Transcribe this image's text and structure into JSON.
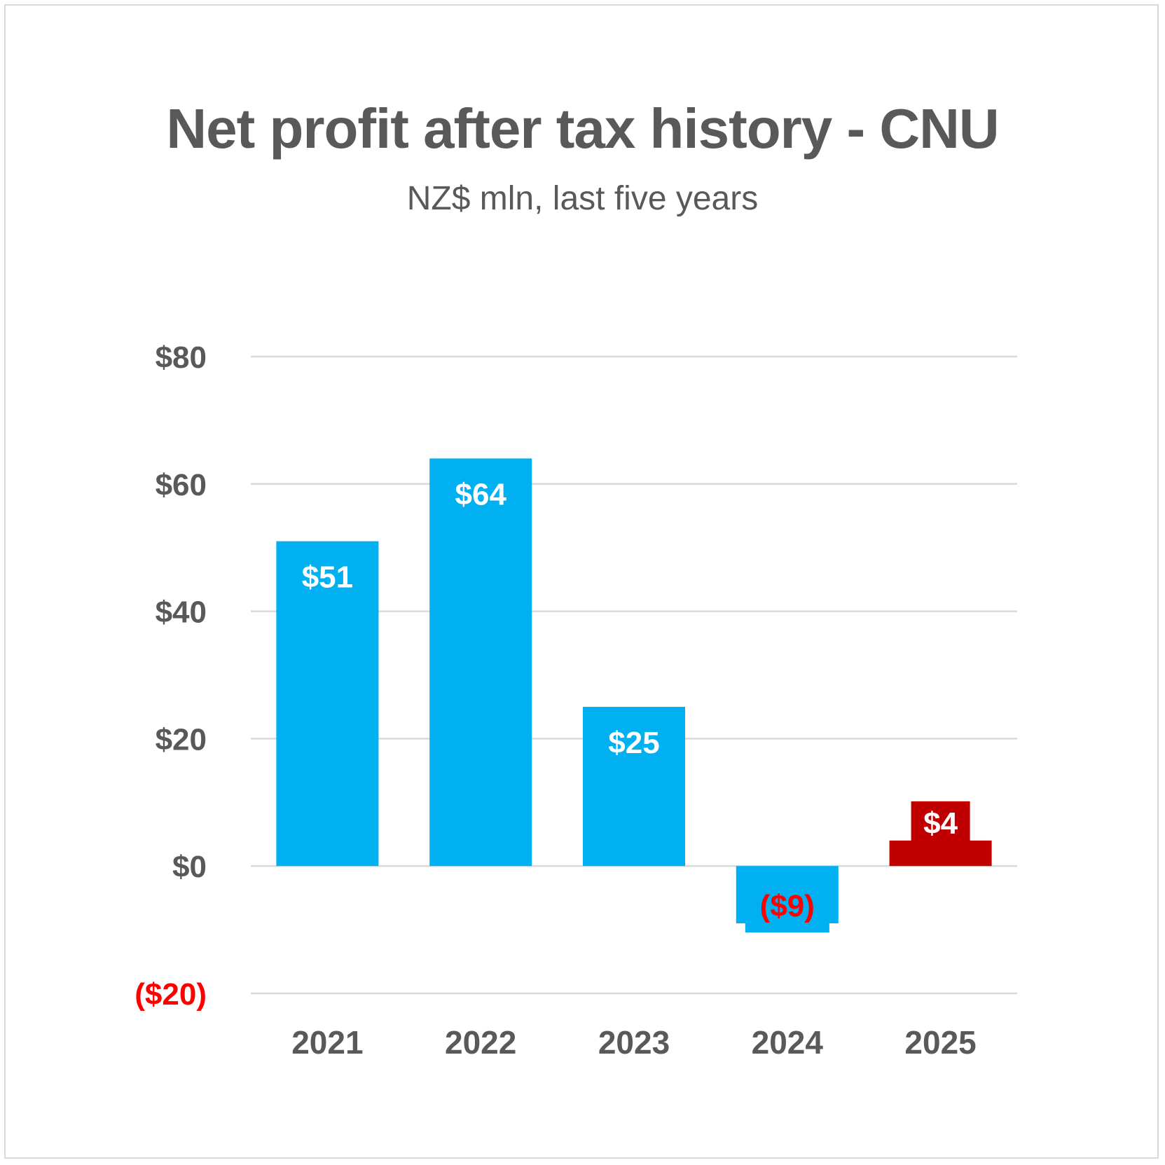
{
  "chart_data": {
    "type": "bar",
    "title": "Net profit after tax history - CNU",
    "subtitle": "NZ$ mln, last five years",
    "categories": [
      "2021",
      "2022",
      "2023",
      "2024",
      "2025"
    ],
    "values": [
      51,
      64,
      25,
      -9,
      4
    ],
    "data_labels": [
      "$51",
      "$64",
      "$25",
      "($9)",
      "$4"
    ],
    "ylim": [
      -20,
      80
    ],
    "yticks": [
      {
        "value": 80,
        "label": "$80"
      },
      {
        "value": 60,
        "label": "$60"
      },
      {
        "value": 40,
        "label": "$40"
      },
      {
        "value": 20,
        "label": "$20"
      },
      {
        "value": 0,
        "label": "$0"
      },
      {
        "value": -20,
        "label": "($20)"
      }
    ],
    "xlabel": "",
    "ylabel": "",
    "grid": true,
    "legend": "none",
    "colors": {
      "bar": "#00b0f0",
      "bar_highlight": "#c00000",
      "label_on_bar": "#ffffff",
      "negative_text": "#ff0000",
      "axis_text": "#595959",
      "grid": "#d9d9d9"
    }
  }
}
